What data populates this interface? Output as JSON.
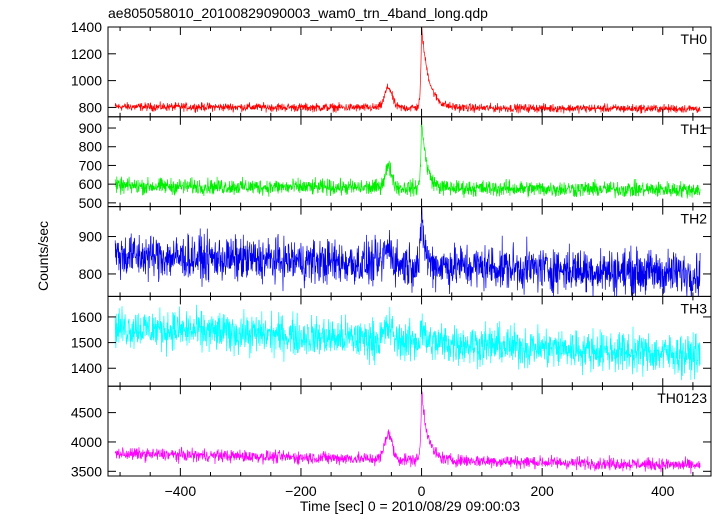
{
  "chart_data": {
    "type": "line",
    "title": "ae805058010_20100829090003_wam0_trn_4band_long.qdp",
    "xlabel": "Time [sec] 0 = 2010/08/29 09:00:03",
    "ylabel": "Counts/sec",
    "xlim": [
      -520,
      480
    ],
    "x_ticks": [
      -400,
      -200,
      0,
      200,
      400
    ],
    "x_tick_labels": [
      "−400",
      "−200",
      "0",
      "200",
      "400"
    ],
    "grid": false,
    "panels": [
      {
        "name": "TH0",
        "color": "#ff0000",
        "ylim": [
          730,
          1400
        ],
        "y_ticks": [
          800,
          1000,
          1200,
          1400
        ],
        "baseline_start": 805,
        "baseline_end": 790,
        "noise": 22,
        "peak_x": 0,
        "peak_y": 1400,
        "bump_x": -55,
        "bump_y": 950,
        "decay": 12
      },
      {
        "name": "TH1",
        "color": "#00ee00",
        "ylim": [
          480,
          960
        ],
        "y_ticks": [
          500,
          600,
          700,
          800,
          900
        ],
        "baseline_start": 590,
        "baseline_end": 570,
        "noise": 30,
        "peak_x": 0,
        "peak_y": 960,
        "bump_x": -55,
        "bump_y": 690,
        "decay": 8
      },
      {
        "name": "TH2",
        "color": "#0000ee",
        "ylim": [
          740,
          980
        ],
        "y_ticks": [
          800,
          900
        ],
        "baseline_start": 850,
        "baseline_end": 800,
        "noise": 42,
        "peak_x": 0,
        "peak_y": 975,
        "bump_x": -55,
        "bump_y": 870,
        "decay": 5
      },
      {
        "name": "TH3",
        "color": "#00ffff",
        "ylim": [
          1330,
          1680
        ],
        "y_ticks": [
          1400,
          1500,
          1600
        ],
        "baseline_start": 1560,
        "baseline_end": 1450,
        "noise": 55,
        "peak_x": 0,
        "peak_y": 1600,
        "bump_x": -55,
        "bump_y": 1560,
        "decay": 3
      },
      {
        "name": "TH0123",
        "color": "#ff00ff",
        "ylim": [
          3420,
          4950
        ],
        "y_ticks": [
          3500,
          4000,
          4500
        ],
        "baseline_start": 3800,
        "baseline_end": 3600,
        "noise": 75,
        "peak_x": 0,
        "peak_y": 4900,
        "bump_x": -55,
        "bump_y": 4150,
        "decay": 10
      }
    ]
  }
}
